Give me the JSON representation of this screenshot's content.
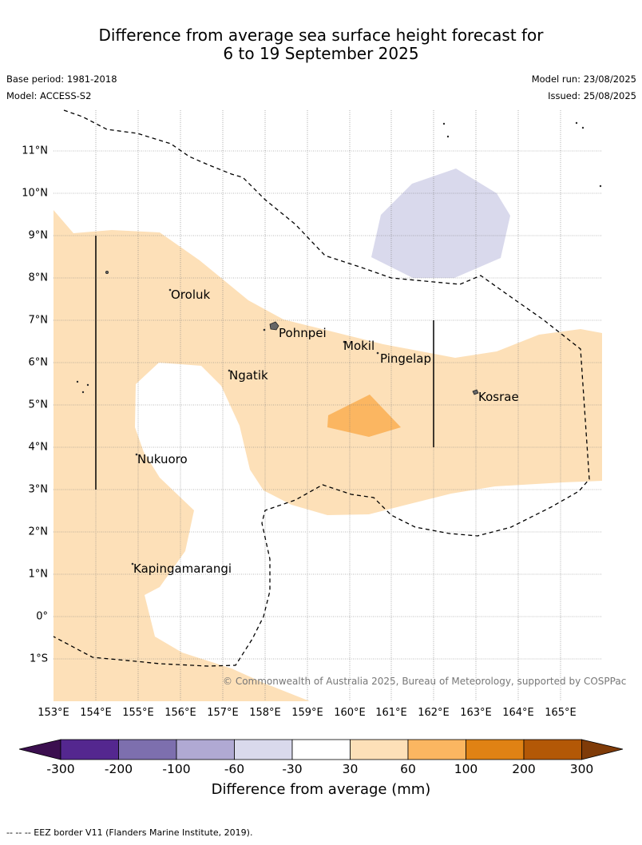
{
  "title": {
    "line1": "Difference from average sea surface height forecast for",
    "line2": "6 to 19 September 2025"
  },
  "meta": {
    "base_period": "Base period: 1981-2018",
    "model": "Model: ACCESS-S2",
    "model_run": "Model run: 23/08/2025",
    "issued": "Issued: 25/08/2025"
  },
  "map": {
    "lon_ticks": [
      "153°E",
      "154°E",
      "155°E",
      "156°E",
      "157°E",
      "158°E",
      "159°E",
      "160°E",
      "161°E",
      "162°E",
      "163°E",
      "164°E",
      "165°E"
    ],
    "lat_ticks": [
      "11°N",
      "10°N",
      "9°N",
      "8°N",
      "7°N",
      "6°N",
      "5°N",
      "4°N",
      "3°N",
      "2°N",
      "1°N",
      "0°",
      "1°S"
    ],
    "places": [
      "Oroluk",
      "Pohnpei",
      "Mokil",
      "Pingelap",
      "Ngatik",
      "Kosrae",
      "Nukuoro",
      "Kapingamarangi"
    ],
    "copyright": "© Commonwealth of Australia 2025, Bureau of Meteorology, supported by COSPPac",
    "eez_line_style": "dashed"
  },
  "colorbar": {
    "title": "Difference from average (mm)",
    "ticks": [
      "-300",
      "-200",
      "-100",
      "-60",
      "-30",
      "30",
      "60",
      "100",
      "200",
      "300"
    ],
    "colors": [
      "#3b0f4f",
      "#54278f",
      "#7d6fae",
      "#b0a9d3",
      "#d9d9ec",
      "#ffffff",
      "#fde0b8",
      "#fbb661",
      "#e08214",
      "#b35806",
      "#7f3b08"
    ]
  },
  "footnote": "--  --  -- EEZ border V11 (Flanders Marine Institute, 2019)."
}
